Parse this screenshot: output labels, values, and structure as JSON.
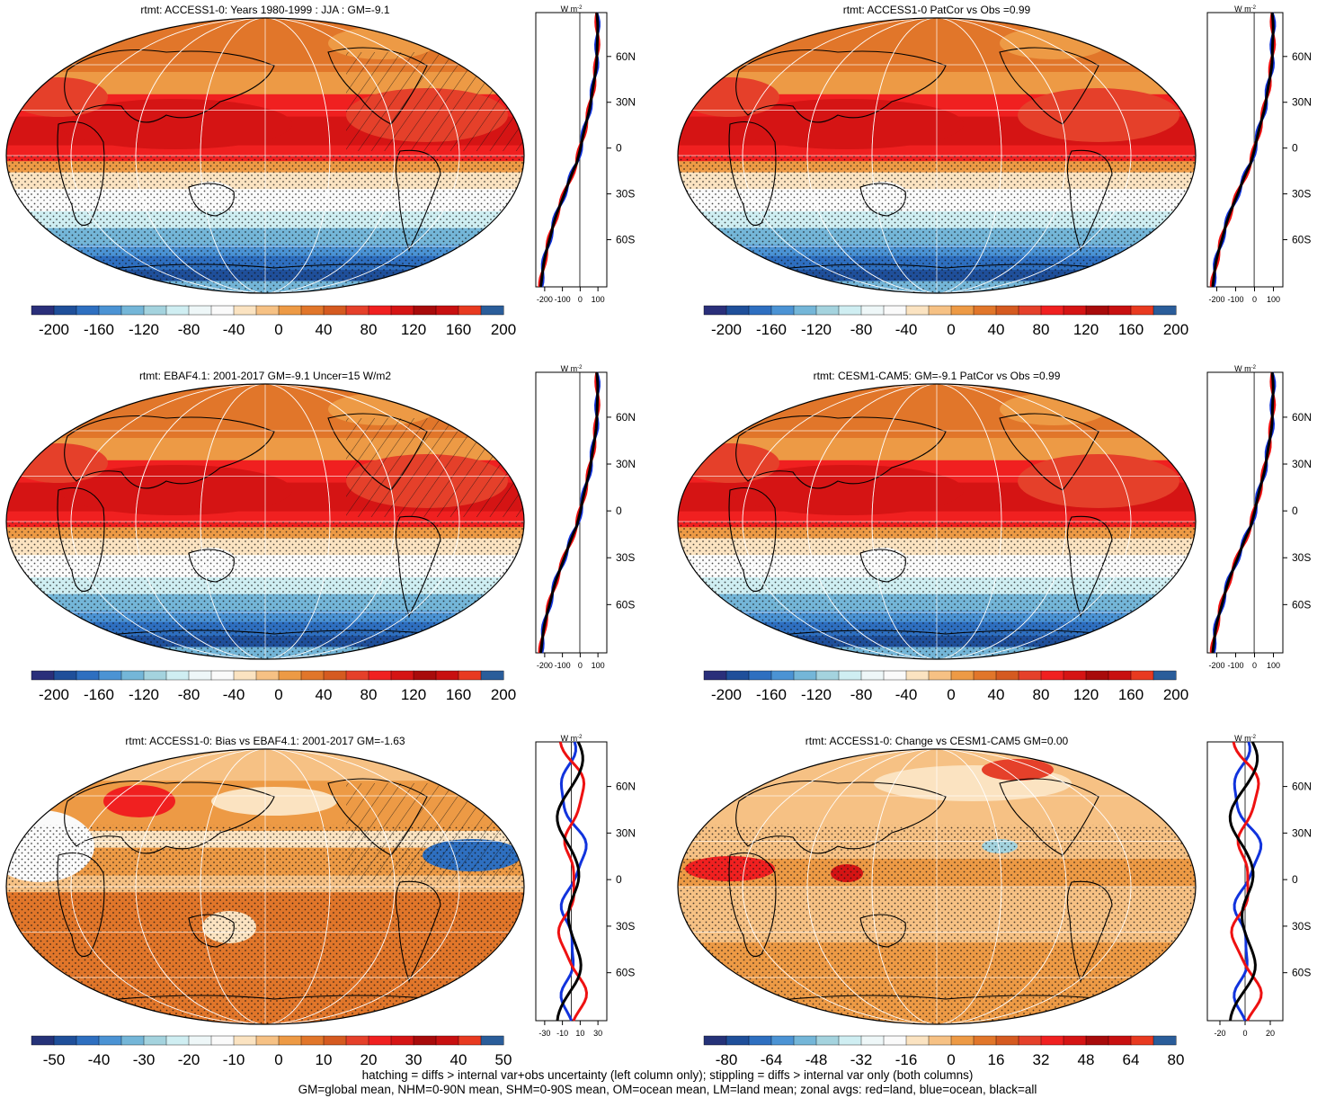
{
  "palette_abs": [
    "#2a2f7a",
    "#1f4f9a",
    "#2e6fc0",
    "#4b93d4",
    "#74b6d8",
    "#a4d3de",
    "#cfeef2",
    "#eef7f8",
    "#fafafa",
    "#fbe3c1",
    "#f6c184",
    "#ed9a45",
    "#e1762a",
    "#d55a20",
    "#e5402a",
    "#f02020",
    "#d51414",
    "#a80b0b",
    "#c81010",
    "#e83a20",
    "#2a5d9a"
  ],
  "palette_diff": [
    "#253278",
    "#1f4f9a",
    "#2e6fc0",
    "#4b93d4",
    "#74b6d8",
    "#a4d3de",
    "#cfeef2",
    "#eef7f8",
    "#fafafa",
    "#fbe3c1",
    "#f6c184",
    "#ed9a45",
    "#e1762a",
    "#d55a20",
    "#e5402a",
    "#f02020",
    "#d51414",
    "#a80b0b",
    "#c81010",
    "#e83a20",
    "#2a5d9a"
  ],
  "zonal_colors": {
    "land": "#ee1111",
    "ocean": "#1133dd",
    "all": "#000000"
  },
  "lat_ticks": [
    "60N",
    "30N",
    "0",
    "30S",
    "60S"
  ],
  "unit_label": "W m",
  "unit_exp": "-2",
  "panels": [
    {
      "id": "p1",
      "title": "rtmt: ACCESS1-0: Years 1980-1999 : JJA : GM=-9.1",
      "cbar_labels": [
        "-200",
        "-160",
        "-120",
        "-80",
        "-40",
        "0",
        "40",
        "80",
        "120",
        "160",
        "200"
      ],
      "zonal_ticks": [
        "-200",
        "-100",
        "0",
        "100"
      ],
      "kind": "abs",
      "hatch": true
    },
    {
      "id": "p2",
      "title": "rtmt: ACCESS1-0 PatCor vs Obs =0.99",
      "cbar_labels": [
        "-200",
        "-160",
        "-120",
        "-80",
        "-40",
        "0",
        "40",
        "80",
        "120",
        "160",
        "200"
      ],
      "zonal_ticks": [
        "-200",
        "-100",
        "0",
        "100"
      ],
      "kind": "abs",
      "hatch": false
    },
    {
      "id": "p3",
      "title": "rtmt: EBAF4.1: 2001-2017 GM=-9.1 Uncer=15 W/m2",
      "cbar_labels": [
        "-200",
        "-160",
        "-120",
        "-80",
        "-40",
        "0",
        "40",
        "80",
        "120",
        "160",
        "200"
      ],
      "zonal_ticks": [
        "-200",
        "-100",
        "0",
        "100"
      ],
      "kind": "abs",
      "hatch": true
    },
    {
      "id": "p4",
      "title": "rtmt: CESM1-CAM5: GM=-9.1 PatCor vs Obs =0.99",
      "cbar_labels": [
        "-200",
        "-160",
        "-120",
        "-80",
        "-40",
        "0",
        "40",
        "80",
        "120",
        "160",
        "200"
      ],
      "zonal_ticks": [
        "-200",
        "-100",
        "0",
        "100"
      ],
      "kind": "abs",
      "hatch": false
    },
    {
      "id": "p5",
      "title": "rtmt: ACCESS1-0: Bias vs EBAF4.1: 2001-2017 GM=-1.63",
      "cbar_labels": [
        "-50",
        "-40",
        "-30",
        "-20",
        "-10",
        "0",
        "10",
        "20",
        "30",
        "40",
        "50"
      ],
      "zonal_ticks": [
        "-30",
        "-10",
        "10",
        "30"
      ],
      "kind": "bias",
      "hatch": true
    },
    {
      "id": "p6",
      "title": "rtmt: ACCESS1-0: Change vs CESM1-CAM5 GM=0.00",
      "cbar_labels": [
        "-80",
        "-64",
        "-48",
        "-32",
        "-16",
        "0",
        "16",
        "32",
        "48",
        "64",
        "80"
      ],
      "zonal_ticks": [
        "-20",
        "0",
        "20"
      ],
      "kind": "change",
      "hatch": false
    }
  ],
  "footer": {
    "line1": "hatching = diffs > internal var+obs uncertainty (left column only); stippling = diffs > internal var only (both columns)",
    "line2": "GM=global mean, NHM=0-90N mean, SHM=0-90S mean, OM=ocean mean, LM=land mean; zonal avgs: red=land, blue=ocean, black=all"
  }
}
